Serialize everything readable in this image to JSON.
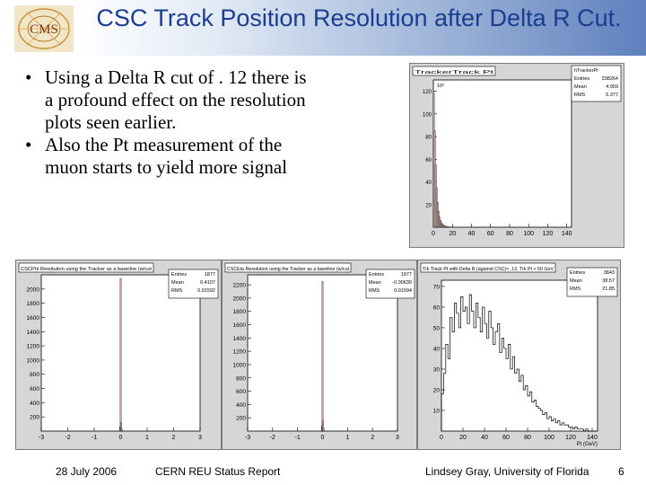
{
  "slide": {
    "title": "CSC Track Position Resolution after Delta R Cut.",
    "bullets": [
      "Using a Delta R cut of . 12 there is a profound effect on the resolution plots seen earlier.",
      "Also the Pt measurement of the muon starts to yield more signal"
    ],
    "logo_text": "CMS",
    "footer": {
      "date": "28 July 2006",
      "event": "CERN REU Status Report",
      "author": "Lindsey Gray, University of Florida",
      "page": "6"
    }
  },
  "plots": [
    {
      "title": "TrackerTrack Pt",
      "stats_name": "hTrackerPt",
      "stats": [
        [
          "Entries",
          "338264"
        ],
        [
          "Mean",
          "4.959"
        ],
        [
          "RMS",
          "5.377"
        ]
      ],
      "exponent": "10³",
      "chart_data": {
        "type": "bar",
        "y_ticks": [
          "120",
          "100",
          "80",
          "60",
          "40",
          "20"
        ],
        "x_ticks": [
          "0",
          "20",
          "40",
          "60",
          "80",
          "100",
          "120",
          "140"
        ],
        "ylim": [
          0,
          130
        ],
        "xlim": [
          0,
          145
        ],
        "x": [
          0.5,
          1.5,
          2.5,
          3.5,
          4.5,
          5.5,
          6.5,
          7.5,
          8.5,
          9.5,
          10.5,
          11.5,
          12.5,
          14,
          16,
          20,
          30
        ],
        "values": [
          118,
          85,
          55,
          35,
          22,
          14,
          9,
          6,
          4,
          3,
          2,
          1.5,
          1,
          0.8,
          0.5,
          0.3,
          0.1
        ]
      }
    },
    {
      "title": "CSCPhi Resolution using the Tracker as a baseline (w/cut",
      "stats_name": "",
      "stats": [
        [
          "Entries",
          "1877"
        ],
        [
          "Mean",
          "0.4107"
        ],
        [
          "RMS",
          "0.01592"
        ]
      ],
      "chart_data": {
        "type": "bar",
        "y_ticks": [
          "2000",
          "1800",
          "1600",
          "1400",
          "1200",
          "1000",
          "800",
          "600",
          "400",
          "200"
        ],
        "x_ticks": [
          "-3",
          "-2",
          "-1",
          "0",
          "1",
          "2",
          "3"
        ],
        "ylim": [
          0,
          2200
        ],
        "xlim": [
          -3,
          3
        ],
        "x": [
          -0.02,
          0,
          0.02,
          0.04
        ],
        "values": [
          60,
          2150,
          120,
          30
        ]
      }
    },
    {
      "title": "CSCEta Resolution using the Tracker as a baseline (w/cut",
      "stats_name": "",
      "stats": [
        [
          "Entries",
          "1977"
        ],
        [
          "Mean",
          "-0.00639"
        ],
        [
          "RMS",
          "0.01594"
        ]
      ],
      "chart_data": {
        "type": "bar",
        "y_ticks": [
          "2200",
          "2000",
          "1800",
          "1600",
          "1400",
          "1200",
          "1000",
          "800",
          "600",
          "400",
          "200"
        ],
        "x_ticks": [
          "-3",
          "-2",
          "-1",
          "0",
          "1",
          "2",
          "3"
        ],
        "ylim": [
          0,
          2350
        ],
        "xlim": [
          -3,
          3
        ],
        "x": [
          -0.02,
          0,
          0.02,
          0.04
        ],
        "values": [
          80,
          2250,
          150,
          40
        ]
      }
    },
    {
      "title": "Trk Track Pt with Delta R (against CSC)< .12, Trk Pt > 50 GeV",
      "stats_name": "",
      "stats": [
        [
          "Entries",
          "3843"
        ],
        [
          "Mean",
          "38.57"
        ],
        [
          "RMS",
          "21.85"
        ]
      ],
      "chart_data": {
        "type": "line",
        "xlabel": "Pt (GeV)",
        "y_ticks": [
          "70",
          "60",
          "50",
          "40",
          "30",
          "20",
          "10"
        ],
        "x_ticks": [
          "0",
          "20",
          "40",
          "60",
          "80",
          "100",
          "120",
          "140"
        ],
        "ylim": [
          0,
          73
        ],
        "xlim": [
          0,
          145
        ],
        "x": [
          1,
          3,
          5,
          7,
          9,
          11,
          13,
          15,
          17,
          19,
          21,
          23,
          25,
          27,
          29,
          31,
          33,
          35,
          37,
          39,
          41,
          43,
          45,
          47,
          49,
          51,
          53,
          55,
          57,
          59,
          61,
          63,
          65,
          67,
          69,
          71,
          73,
          75,
          77,
          79,
          81,
          83,
          85,
          87,
          89,
          91,
          93,
          95,
          97,
          99,
          101,
          103,
          105,
          107,
          109,
          111,
          113,
          115,
          117,
          119,
          121,
          123,
          125,
          127,
          129,
          131,
          133,
          135,
          137,
          139,
          141,
          143
        ],
        "values": [
          18,
          28,
          42,
          35,
          55,
          48,
          62,
          57,
          50,
          65,
          58,
          60,
          52,
          66,
          58,
          50,
          62,
          55,
          48,
          60,
          52,
          45,
          58,
          50,
          42,
          48,
          52,
          38,
          45,
          40,
          35,
          42,
          30,
          36,
          28,
          30,
          24,
          27,
          20,
          22,
          17,
          19,
          14,
          15,
          12,
          11,
          10,
          8,
          9,
          6,
          7,
          5,
          6,
          4,
          5,
          3,
          4,
          3,
          3,
          2,
          2,
          1,
          2,
          1,
          1,
          1,
          0,
          1,
          0,
          0,
          0,
          0
        ]
      }
    }
  ],
  "colors": {
    "title": "#1a3d8f",
    "hist_fill": "#f3c8c8",
    "hist_line": "#000000",
    "plot_frame": "#d6d6d6"
  }
}
